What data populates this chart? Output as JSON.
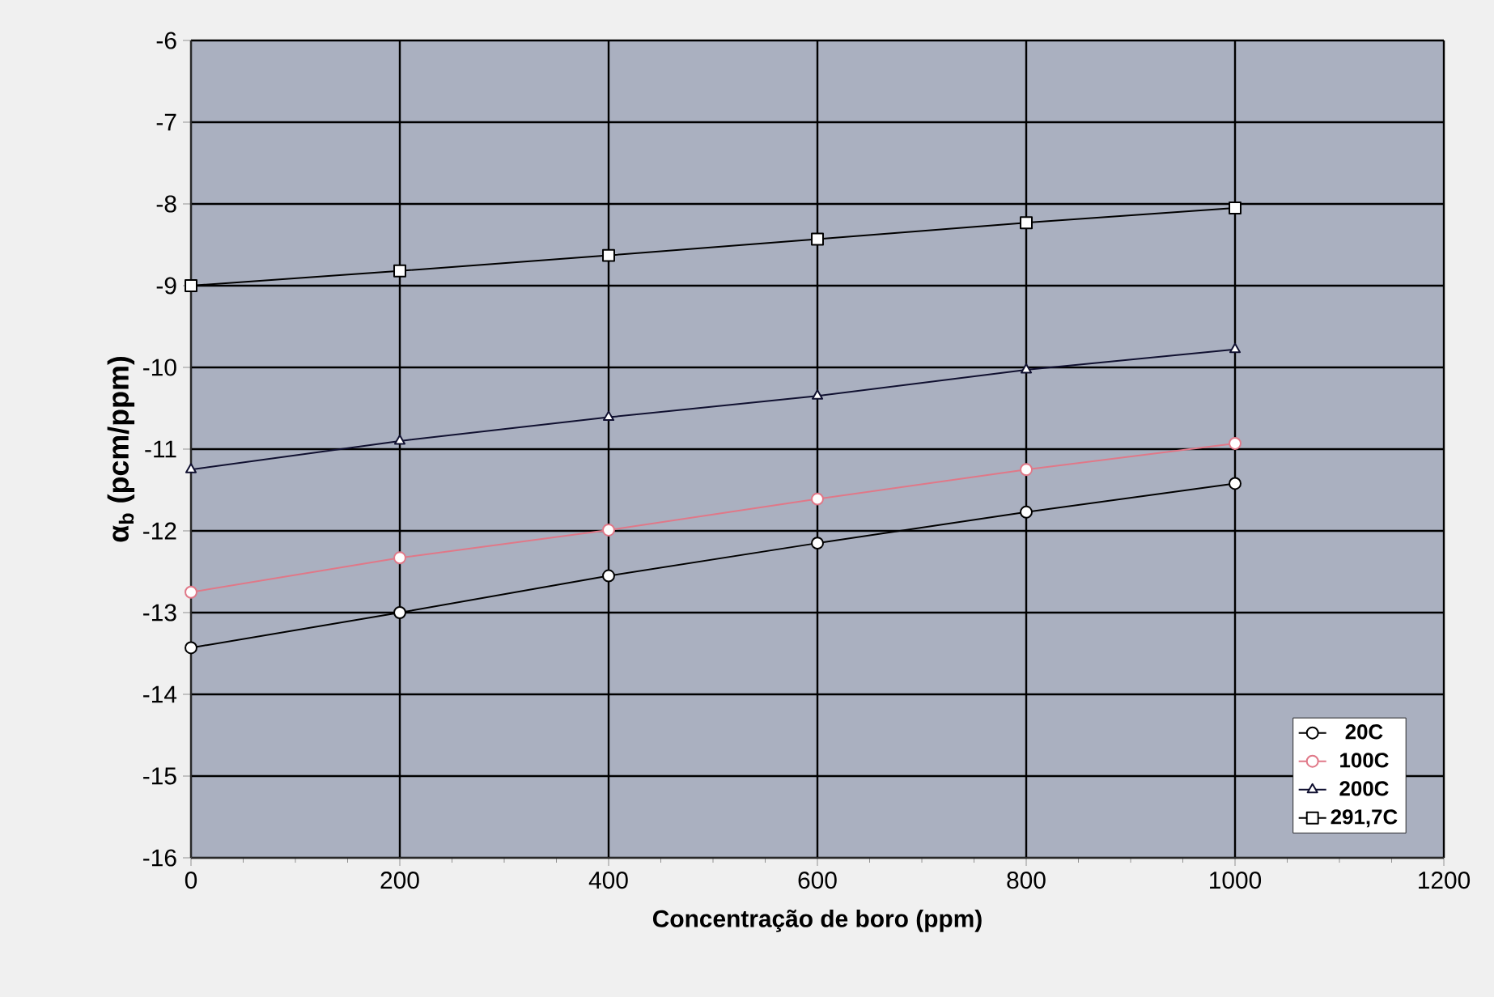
{
  "chart_data": {
    "type": "line",
    "xlabel": "Concentração de boro (ppm)",
    "ylabel": "α$_{b}$ (pcm/ppm)",
    "x": [
      0,
      200,
      400,
      600,
      800,
      1000
    ],
    "series": [
      {
        "name": "20C",
        "color": "#000000",
        "marker": "circle",
        "values": [
          -13.43,
          -13.0,
          -12.55,
          -12.15,
          -11.77,
          -11.42
        ]
      },
      {
        "name": "100C",
        "color": "#e07888",
        "marker": "circle",
        "values": [
          -12.75,
          -12.33,
          -11.99,
          -11.61,
          -11.25,
          -10.93
        ]
      },
      {
        "name": "200C",
        "color": "#101030",
        "marker": "triangle",
        "values": [
          -11.25,
          -10.9,
          -10.61,
          -10.35,
          -10.03,
          -9.78
        ]
      },
      {
        "name": "291,7C",
        "color": "#000000",
        "marker": "square",
        "values": [
          -9.0,
          -8.82,
          -8.63,
          -8.43,
          -8.23,
          -8.05
        ]
      }
    ],
    "xlim": [
      0,
      1200
    ],
    "xticks": [
      0,
      200,
      400,
      600,
      800,
      1000,
      1200
    ],
    "ylim": [
      -16,
      -6
    ],
    "yticks": [
      -16,
      -15,
      -14,
      -13,
      -12,
      -11,
      -10,
      -9,
      -8,
      -7,
      -6
    ],
    "grid": true,
    "legend": "bottom right",
    "line_style": "solid"
  }
}
